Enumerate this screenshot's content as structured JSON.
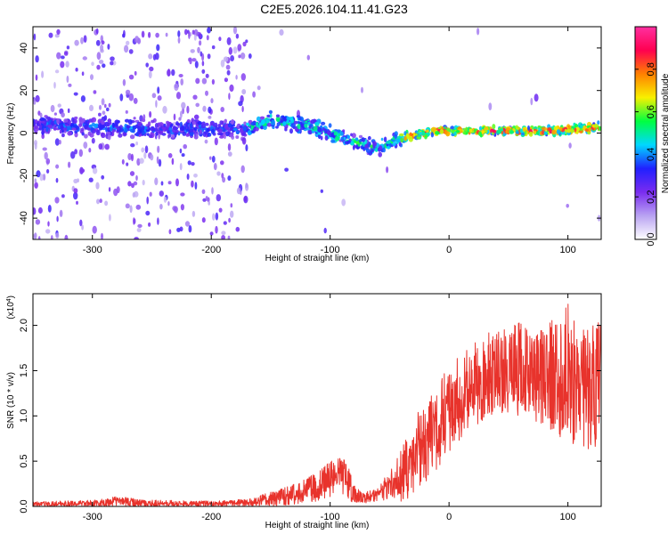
{
  "title": "C2E5.2026.104.11.41.G23",
  "colors": {
    "snr_line": "#e8332c",
    "colorbar_stops": [
      "#ffffff",
      "#b9a3f2",
      "#7a2cf0",
      "#2020ff",
      "#00d8ff",
      "#00ff40",
      "#f8f000",
      "#ff8000",
      "#ff0050",
      "#ff30a0"
    ]
  },
  "chart_data": [
    {
      "id": "spectrogram",
      "type": "heatmap",
      "xlabel": "Height of straight line (km)",
      "ylabel": "Frequency (Hz)",
      "xlim": [
        -350,
        128
      ],
      "ylim": [
        -50,
        50
      ],
      "xticks": [
        -300,
        -200,
        -100,
        0,
        100
      ],
      "yticks": [
        -40,
        -20,
        0,
        20,
        40
      ],
      "colorbar": {
        "label": "Normalized spectral amplitude",
        "range": [
          0,
          1
        ],
        "ticks": [
          "0.0",
          "0.2",
          "0.4",
          "0.6",
          "0.8"
        ]
      },
      "ridge": {
        "description": "frequency-tracked signal center line",
        "x": [
          -350,
          -300,
          -260,
          -170,
          -150,
          -120,
          -100,
          -80,
          -60,
          -45,
          -30,
          -10,
          0,
          40,
          80,
          110,
          128
        ],
        "y": [
          4,
          3,
          2,
          2,
          6,
          4,
          0,
          -4,
          -7,
          -3,
          -1,
          1,
          1,
          1,
          1,
          2,
          3
        ],
        "peak_amplitude_x": [
          -30,
          128
        ]
      }
    },
    {
      "id": "snr",
      "type": "line",
      "xlabel": "Height of straight line (km)",
      "ylabel": "SNR (10 * v/v)",
      "y_scale_label": "(x10",
      "y_scale_exponent": "4",
      "xlim": [
        -350,
        128
      ],
      "ylim": [
        0,
        23500
      ],
      "xticks": [
        -300,
        -200,
        -100,
        0,
        100
      ],
      "yticks": [
        "0.0",
        "0.5",
        "1.0",
        "1.5",
        "2.0"
      ],
      "ytick_values": [
        0,
        5000,
        10000,
        15000,
        20000
      ],
      "series": [
        {
          "name": "SNR",
          "x": [
            -350,
            -300,
            -280,
            -250,
            -200,
            -170,
            -150,
            -130,
            -110,
            -100,
            -95,
            -90,
            -85,
            -80,
            -75,
            -70,
            -60,
            -50,
            -40,
            -30,
            -20,
            -10,
            0,
            10,
            20,
            30,
            40,
            50,
            60,
            70,
            80,
            90,
            100,
            110,
            120,
            128
          ],
          "y": [
            200,
            300,
            600,
            300,
            300,
            400,
            800,
            1200,
            2000,
            2800,
            3000,
            4200,
            2500,
            1500,
            1000,
            900,
            1200,
            2500,
            3000,
            5000,
            7000,
            9000,
            10500,
            11500,
            12500,
            13500,
            14000,
            14500,
            15000,
            14800,
            14300,
            14000,
            13800,
            13500,
            13200,
            12800
          ],
          "envelope_upper": [
            500,
            700,
            1100,
            700,
            600,
            800,
            1600,
            2500,
            3800,
            5000,
            5200,
            5600,
            4500,
            2800,
            1800,
            1600,
            2000,
            4000,
            6500,
            9500,
            12000,
            14000,
            15500,
            17000,
            18000,
            19000,
            19500,
            20000,
            20500,
            19800,
            19500,
            21500,
            23500,
            19500,
            21000,
            20000
          ],
          "envelope_lower": [
            0,
            0,
            0,
            0,
            0,
            0,
            0,
            200,
            600,
            1000,
            1200,
            1500,
            600,
            400,
            300,
            300,
            400,
            600,
            500,
            1200,
            2500,
            4000,
            6000,
            7500,
            8500,
            9500,
            9500,
            10000,
            10000,
            9500,
            9000,
            8000,
            7000,
            6500,
            6000,
            6500
          ]
        }
      ]
    }
  ]
}
